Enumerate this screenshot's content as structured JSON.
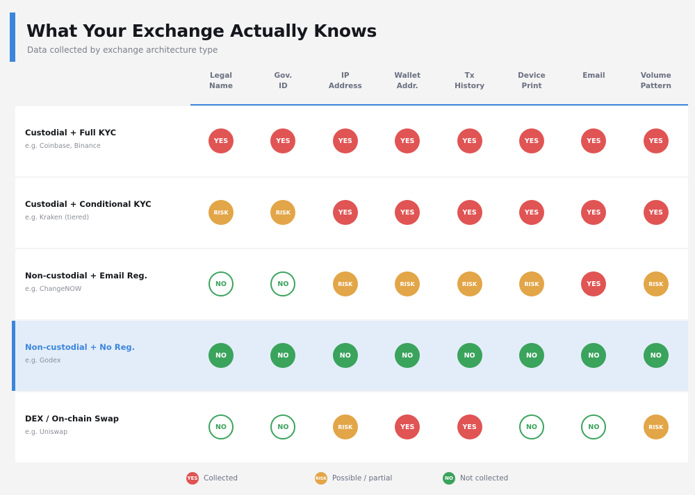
{
  "header": {
    "title": "What Your Exchange Actually Knows",
    "subtitle": "Data collected by exchange architecture type"
  },
  "columns": [
    [
      "Legal",
      "Name"
    ],
    [
      "Gov.",
      "ID"
    ],
    [
      "IP",
      "Address"
    ],
    [
      "Wallet",
      "Addr."
    ],
    [
      "Tx",
      "History"
    ],
    [
      "Device",
      "Print"
    ],
    [
      "Email"
    ],
    [
      "Volume",
      "Pattern"
    ]
  ],
  "rows": [
    {
      "name": "Custodial + Full KYC",
      "example": "e.g. Coinbase, Binance",
      "cells": [
        "YES",
        "YES",
        "YES",
        "YES",
        "YES",
        "YES",
        "YES",
        "YES"
      ]
    },
    {
      "name": "Custodial + Conditional KYC",
      "example": "e.g. Kraken (tiered)",
      "cells": [
        "RISK",
        "RISK",
        "YES",
        "YES",
        "YES",
        "YES",
        "YES",
        "YES"
      ]
    },
    {
      "name": "Non-custodial + Email Reg.",
      "example": "e.g. ChangeNOW",
      "cells": [
        "NO",
        "NO",
        "RISK",
        "RISK",
        "RISK",
        "RISK",
        "YES",
        "RISK"
      ]
    },
    {
      "name": "Non-custodial + No Reg.",
      "example": "e.g. Godex",
      "highlight": true,
      "cells": [
        "NO",
        "NO",
        "NO",
        "NO",
        "NO",
        "NO",
        "NO",
        "NO"
      ]
    },
    {
      "name": "DEX / On-chain Swap",
      "example": "e.g. Uniswap",
      "cells": [
        "NO",
        "NO",
        "RISK",
        "YES",
        "YES",
        "NO",
        "NO",
        "RISK"
      ]
    }
  ],
  "legend": [
    {
      "badge": "YES",
      "label": "Collected"
    },
    {
      "badge": "RISK",
      "label": "Possible / partial"
    },
    {
      "badge": "NO",
      "label": "Not collected"
    }
  ]
}
